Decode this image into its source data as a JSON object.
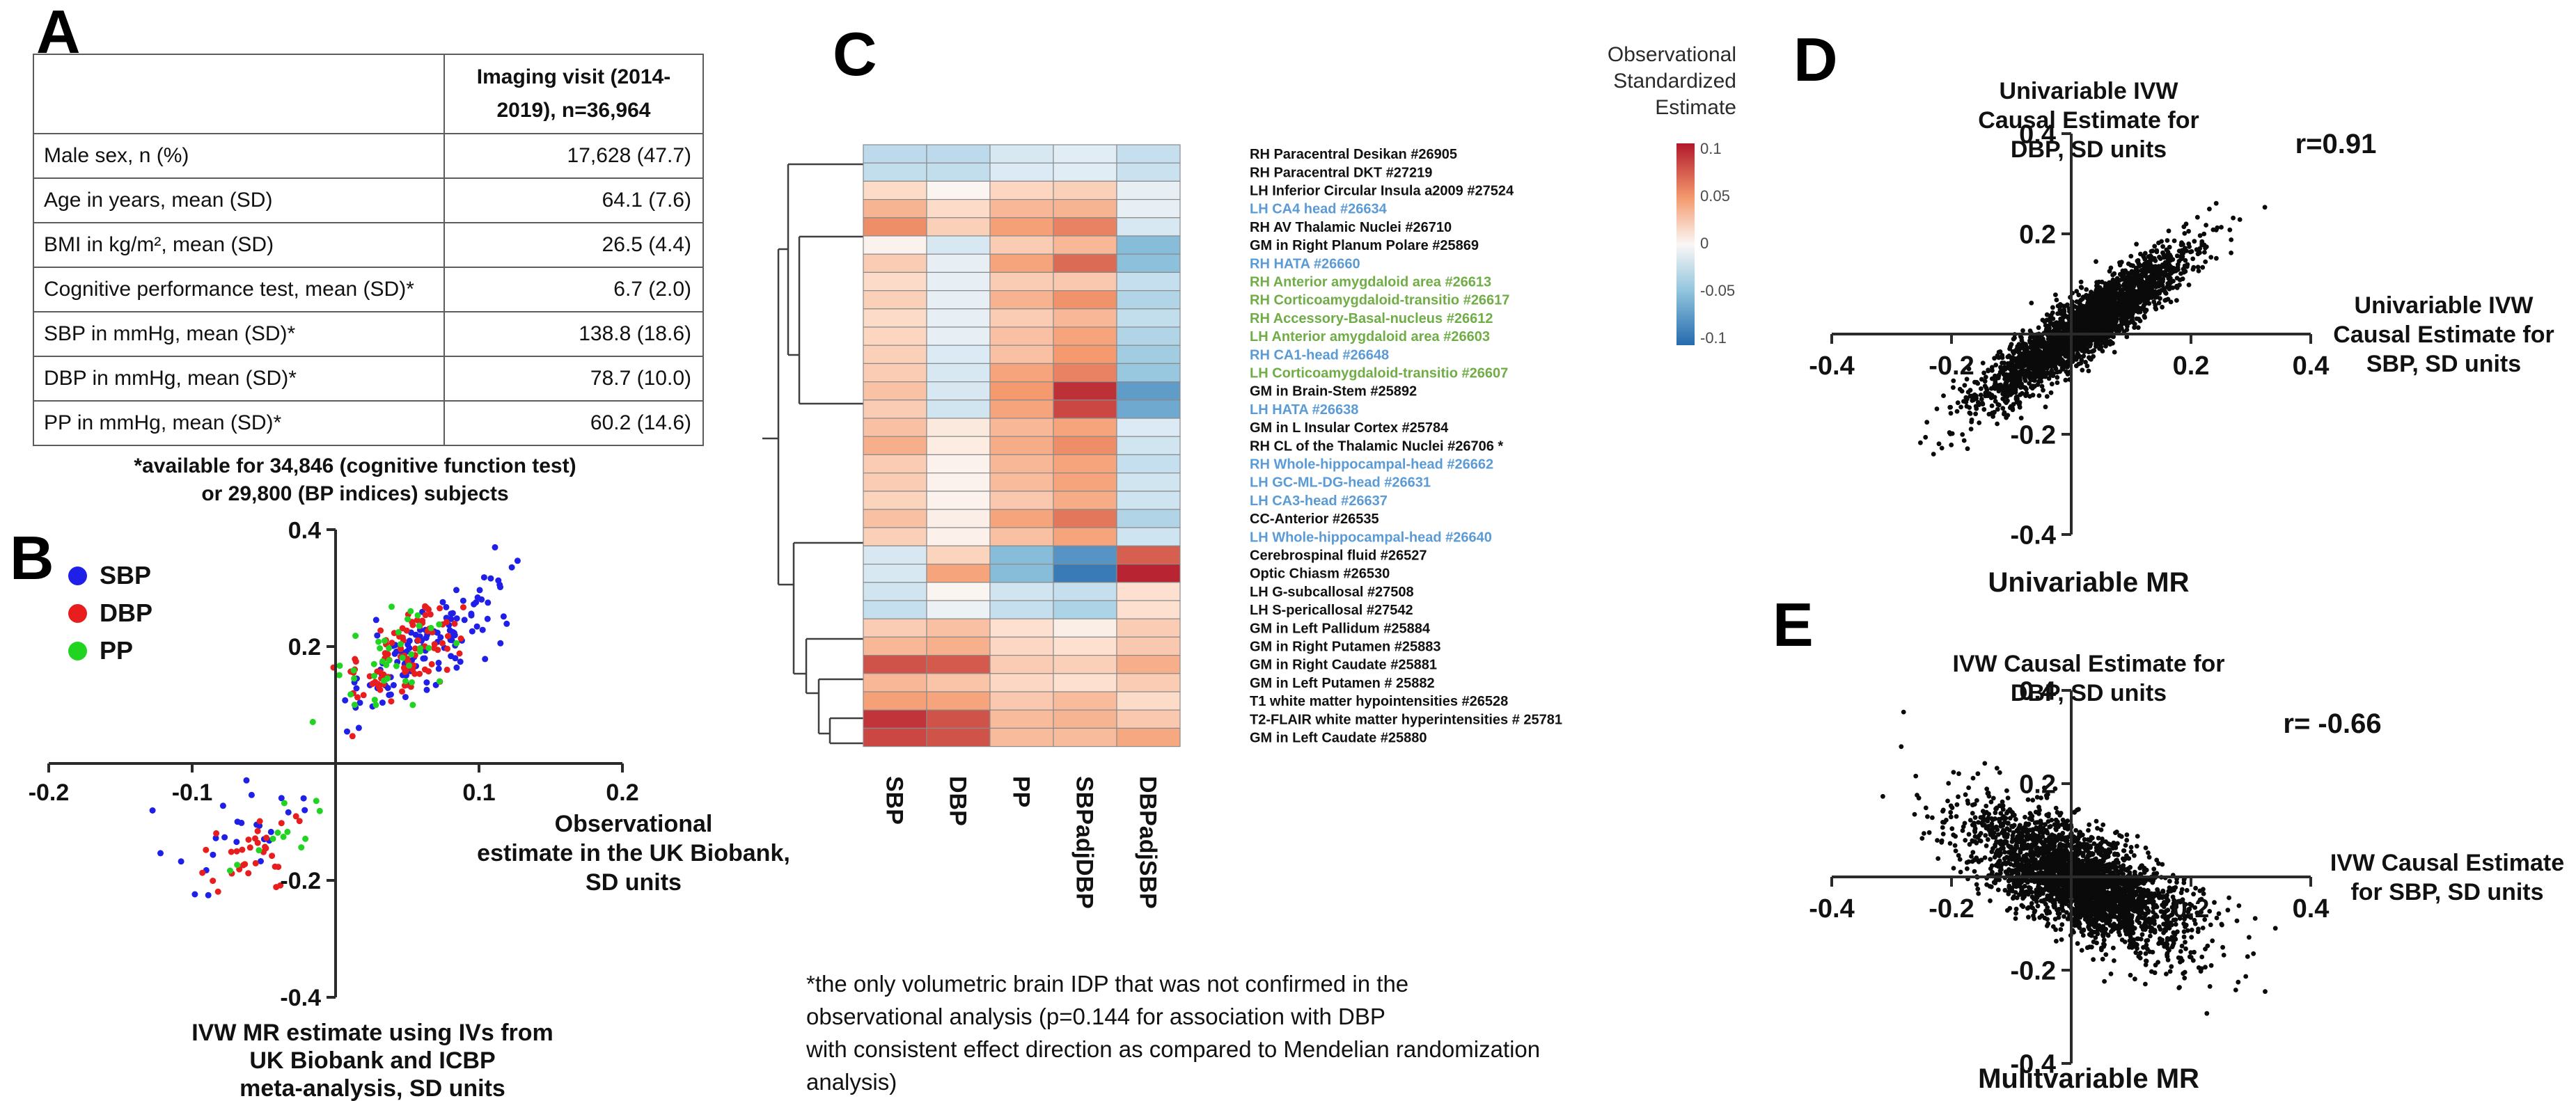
{
  "panels": {
    "A": {
      "letter": "A",
      "table": {
        "header": "Imaging visit (2014-\n2019), n=36,964",
        "rows": [
          {
            "label": "Male sex, n (%)",
            "value": "17,628 (47.7)"
          },
          {
            "label": "Age in years, mean (SD)",
            "value": "64.1 (7.6)"
          },
          {
            "label": "BMI in kg/m², mean (SD)",
            "value": "26.5 (4.4)"
          },
          {
            "label": "Cognitive performance test, mean (SD)*",
            "value": "6.7 (2.0)"
          },
          {
            "label": "SBP in mmHg, mean (SD)*",
            "value": "138.8 (18.6)"
          },
          {
            "label": "DBP in mmHg, mean (SD)*",
            "value": "78.7 (10.0)"
          },
          {
            "label": "PP in mmHg, mean (SD)*",
            "value": "60.2 (14.6)"
          }
        ],
        "footnote": "*available for 34,846 (cognitive function test)\nor 29,800 (BP indices) subjects"
      }
    },
    "B": {
      "letter": "B"
    },
    "C": {
      "letter": "C"
    },
    "D": {
      "letter": "D"
    },
    "E": {
      "letter": "E"
    }
  },
  "chart_data": [
    {
      "panel": "B",
      "type": "scatter",
      "xlabel": "Observational\nestimate in the UK Biobank,\nSD units",
      "bottom_label": "IVW MR estimate using IVs from\nUK Biobank and ICBP\nmeta-analysis, SD units",
      "xlim": [
        -0.2,
        0.2
      ],
      "ylim": [
        -0.4,
        0.4
      ],
      "xticks": [
        -0.2,
        -0.1,
        0.1,
        0.2
      ],
      "yticks": [
        0.4,
        0.2,
        -0.2,
        -0.4
      ],
      "legend_position": "upper-left",
      "series": [
        {
          "name": "SBP",
          "color": "#1f1fe8",
          "clusters": [
            {
              "n": 120,
              "cx": 0.065,
              "cy": 0.2,
              "sx": 0.028,
              "sy": 0.035,
              "slope": 1.5
            },
            {
              "n": 25,
              "cx": -0.075,
              "cy": -0.12,
              "sx": 0.03,
              "sy": 0.035,
              "slope": 0.8
            }
          ]
        },
        {
          "name": "DBP",
          "color": "#e81e1e",
          "clusters": [
            {
              "n": 95,
              "cx": 0.05,
              "cy": 0.185,
              "sx": 0.022,
              "sy": 0.035,
              "slope": 1.5
            },
            {
              "n": 32,
              "cx": -0.06,
              "cy": -0.145,
              "sx": 0.025,
              "sy": 0.04,
              "slope": 0.9
            }
          ]
        },
        {
          "name": "PP",
          "color": "#21d421",
          "clusters": [
            {
              "n": 42,
              "cx": 0.035,
              "cy": 0.175,
              "sx": 0.02,
              "sy": 0.04,
              "slope": 1.4
            },
            {
              "n": 12,
              "cx": -0.05,
              "cy": -0.13,
              "sx": 0.02,
              "sy": 0.04,
              "slope": 0.8
            }
          ]
        }
      ]
    },
    {
      "panel": "C",
      "type": "heatmap",
      "colorbar_title": "Observational\nStandardized\nEstimate",
      "colorbar_ticks": [
        0.1,
        0.05,
        0,
        -0.05,
        -0.1
      ],
      "vmin": -0.1,
      "vmax": 0.1,
      "columns": [
        "SBP",
        "DBP",
        "PP",
        "SBPadjDBP",
        "DBPadjSBP"
      ],
      "rows": [
        {
          "label": "RH Paracentral Desikan #26905",
          "color": "black",
          "values": [
            -0.025,
            -0.025,
            -0.012,
            -0.008,
            -0.02
          ]
        },
        {
          "label": "RH Paracentral DKT #27219",
          "color": "black",
          "values": [
            -0.022,
            -0.022,
            -0.01,
            -0.008,
            -0.018
          ]
        },
        {
          "label": "LH Inferior Circular Insula a2009  #27524",
          "color": "black",
          "values": [
            0.012,
            0.001,
            0.015,
            0.018,
            -0.006
          ]
        },
        {
          "label": "LH CA4 head #26634",
          "color": "blue",
          "values": [
            0.032,
            0.012,
            0.03,
            0.032,
            -0.006
          ]
        },
        {
          "label": "RH AV Thalamic Nuclei #26710",
          "color": "black",
          "values": [
            0.05,
            0.018,
            0.042,
            0.055,
            -0.012
          ]
        },
        {
          "label": "GM in Right Planum Polare #25869",
          "color": "black",
          "values": [
            0.002,
            -0.012,
            0.02,
            0.03,
            -0.05
          ]
        },
        {
          "label": "RH HATA #26660",
          "color": "blue",
          "values": [
            0.02,
            -0.006,
            0.04,
            0.065,
            -0.048
          ]
        },
        {
          "label": "RH Anterior amygdaloid area #26613",
          "color": "green",
          "values": [
            0.012,
            -0.006,
            0.02,
            0.022,
            -0.02
          ]
        },
        {
          "label": "RH Corticoamygdaloid-transitio #26617",
          "color": "green",
          "values": [
            0.018,
            -0.006,
            0.033,
            0.048,
            -0.03
          ]
        },
        {
          "label": "RH Accessory-Basal-nucleus #26612",
          "color": "green",
          "values": [
            0.012,
            -0.006,
            0.02,
            0.03,
            -0.022
          ]
        },
        {
          "label": "LH Anterior amygdaloid area #26603",
          "color": "green",
          "values": [
            0.015,
            -0.006,
            0.026,
            0.04,
            -0.03
          ]
        },
        {
          "label": "RH CA1-head #26648",
          "color": "blue",
          "values": [
            0.018,
            -0.01,
            0.026,
            0.045,
            -0.038
          ]
        },
        {
          "label": "LH Corticoamygdaloid-transitio #26607",
          "color": "green",
          "values": [
            0.02,
            -0.012,
            0.04,
            0.055,
            -0.042
          ]
        },
        {
          "label": "GM in Brain-Stem #25892",
          "color": "black",
          "values": [
            0.025,
            -0.012,
            0.045,
            0.09,
            -0.07
          ]
        },
        {
          "label": "LH HATA #26638",
          "color": "blue",
          "values": [
            0.02,
            -0.015,
            0.04,
            0.08,
            -0.062
          ]
        },
        {
          "label": "GM in L Insular Cortex #25784",
          "color": "black",
          "values": [
            0.026,
            0.006,
            0.03,
            0.04,
            -0.01
          ]
        },
        {
          "label": "RH CL of the Thalamic Nuclei #26706 *",
          "color": "black",
          "values": [
            0.035,
            0.005,
            0.036,
            0.05,
            -0.015
          ]
        },
        {
          "label": "RH Whole-hippocampal-head #26662",
          "color": "blue",
          "values": [
            0.02,
            0.002,
            0.03,
            0.04,
            -0.02
          ]
        },
        {
          "label": "LH GC-ML-DG-head #26631",
          "color": "blue",
          "values": [
            0.02,
            0.002,
            0.028,
            0.04,
            -0.015
          ]
        },
        {
          "label": "LH CA3-head #26637",
          "color": "blue",
          "values": [
            0.016,
            0.002,
            0.022,
            0.036,
            -0.016
          ]
        },
        {
          "label": "CC-Anterior #26535",
          "color": "black",
          "values": [
            0.026,
            0.004,
            0.04,
            0.06,
            -0.03
          ]
        },
        {
          "label": "LH Whole-hippocampal-head #26640",
          "color": "blue",
          "values": [
            0.018,
            0.003,
            0.026,
            0.04,
            -0.016
          ]
        },
        {
          "label": "Cerebrospinal fluid #26527",
          "color": "black",
          "values": [
            -0.012,
            0.016,
            -0.05,
            -0.075,
            0.07
          ]
        },
        {
          "label": "Optic Chiasm #26530",
          "color": "black",
          "values": [
            -0.012,
            0.04,
            -0.05,
            -0.09,
            0.095
          ]
        },
        {
          "label": "LH G-subcallosal #27508",
          "color": "black",
          "values": [
            -0.015,
            0.001,
            -0.015,
            -0.02,
            0.01
          ]
        },
        {
          "label": "LH S-pericallosal #27542",
          "color": "black",
          "values": [
            -0.02,
            -0.005,
            -0.02,
            -0.032,
            0.01
          ]
        },
        {
          "label": "GM in Left Pallidum #25884",
          "color": "black",
          "values": [
            0.02,
            0.026,
            0.01,
            0.004,
            0.02
          ]
        },
        {
          "label": "GM in Right Putamen #25883",
          "color": "black",
          "values": [
            0.03,
            0.034,
            0.014,
            0.01,
            0.022
          ]
        },
        {
          "label": "GM in Right Caudate #25881",
          "color": "black",
          "values": [
            0.075,
            0.072,
            0.02,
            0.018,
            0.035
          ]
        },
        {
          "label": "GM in Left Putamen # 25882",
          "color": "black",
          "values": [
            0.03,
            0.024,
            0.014,
            0.01,
            0.02
          ]
        },
        {
          "label": "T1 white matter hypointensities #26528",
          "color": "black",
          "values": [
            0.042,
            0.04,
            0.022,
            0.028,
            0.012
          ]
        },
        {
          "label": "T2-FLAIR white matter hyperintensities # 25781",
          "color": "black",
          "values": [
            0.088,
            0.075,
            0.028,
            0.032,
            0.022
          ]
        },
        {
          "label": "GM in Left Caudate #25880",
          "color": "black",
          "values": [
            0.08,
            0.075,
            0.028,
            0.028,
            0.038
          ]
        }
      ],
      "footnote": "*the only volumetric brain IDP that was not confirmed in the\nobservational analysis (p=0.144 for association with DBP\nwith consistent effect direction as compared to Mendelian randomization\nanalysis)"
    },
    {
      "panel": "D",
      "type": "scatter",
      "title": "Univariable IVW\nCausal Estimate for\nDBP, SD units",
      "xlabel": "Univariable IVW\nCausal Estimate for\nSBP, SD units",
      "bottom_label": "Univariable MR",
      "r_label": "r=0.91",
      "xlim": [
        -0.4,
        0.4
      ],
      "ylim": [
        -0.4,
        0.4
      ],
      "xticks": [
        -0.4,
        -0.2,
        0.2,
        0.4
      ],
      "yticks": [
        0.4,
        0.2,
        -0.2,
        -0.4
      ],
      "series": [
        {
          "name": "IDP estimates",
          "color": "#0a0a0a",
          "clusters": [
            {
              "n": 2600,
              "cx": 0.02,
              "cy": 0.012,
              "sx": 0.085,
              "sy": 0.032,
              "slope": 0.8
            }
          ]
        }
      ]
    },
    {
      "panel": "E",
      "type": "scatter",
      "title": "IVW Causal Estimate for\nDBP, SD units",
      "xlabel": "IVW Causal Estimate\nfor SBP, SD units",
      "bottom_label": "Mulitvariable MR",
      "r_label": "r= -0.66",
      "xlim": [
        -0.4,
        0.4
      ],
      "ylim": [
        -0.4,
        0.4
      ],
      "xticks": [
        -0.4,
        -0.2,
        0.2,
        0.4
      ],
      "yticks": [
        0.4,
        0.2,
        -0.2,
        -0.4
      ],
      "series": [
        {
          "name": "IDP estimates",
          "color": "#0a0a0a",
          "clusters": [
            {
              "n": 2800,
              "cx": 0.01,
              "cy": -0.005,
              "sx": 0.09,
              "sy": 0.055,
              "slope": -0.55
            }
          ]
        }
      ]
    }
  ]
}
